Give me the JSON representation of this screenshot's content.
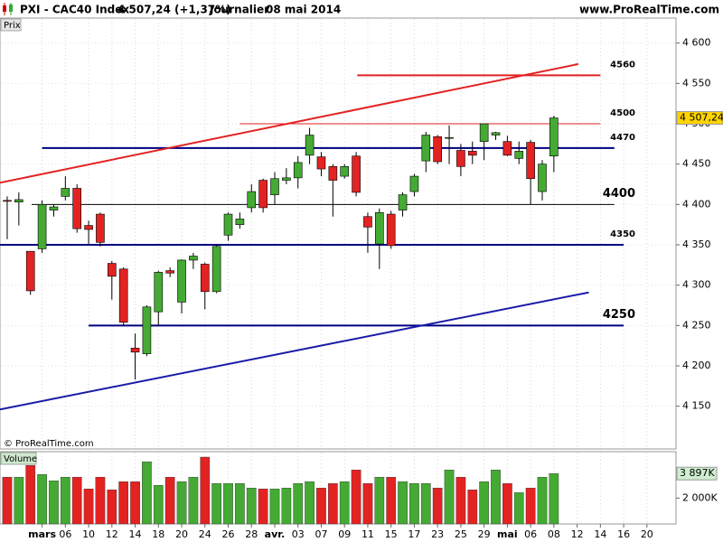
{
  "header": {
    "symbol": "PXI - CAC40 Index",
    "quote": "4 507,24 (+1,37%)",
    "period": "Journalier",
    "date": "08 mai 2014",
    "site": "www.ProRealTime.com"
  },
  "chart_data": [
    {
      "type": "candlestick",
      "y_label": "Prix",
      "watermark": "© ProRealTime.com",
      "categories": [
        null,
        null,
        null,
        "mars",
        null,
        "06",
        null,
        "10",
        null,
        "12",
        null,
        "14",
        null,
        "18",
        null,
        "20",
        null,
        "24",
        null,
        "26",
        null,
        "28",
        null,
        "avr.",
        null,
        "03",
        null,
        "07",
        null,
        "09",
        null,
        "11",
        null,
        "15",
        null,
        "17",
        null,
        "23",
        null,
        "25",
        null,
        "29",
        null,
        "mai",
        null,
        "06",
        null,
        "08",
        null,
        "12",
        null,
        "14",
        null,
        "16",
        null,
        "20",
        null
      ],
      "open": [
        4405,
        4403,
        4342,
        4345,
        4393,
        4410,
        4420,
        4374,
        4388,
        4327,
        4320,
        4222,
        4215,
        4267,
        4318,
        4279,
        4331,
        4326,
        4292,
        4362,
        4375,
        4396,
        4430,
        4412,
        4430,
        4433,
        4461,
        4459,
        4447,
        4435,
        4460,
        4385,
        4351,
        4388,
        4393,
        4416,
        4454,
        4484,
        4482,
        4467,
        4466,
        4478,
        4486,
        4478,
        4457,
        4477,
        4416,
        4460,
        null,
        null,
        null,
        null,
        null,
        null,
        null,
        null,
        null
      ],
      "high": [
        4410,
        4415,
        4342,
        4405,
        4400,
        4435,
        4425,
        4380,
        4390,
        4330,
        4322,
        4240,
        4275,
        4318,
        4322,
        4332,
        4340,
        4328,
        4350,
        4390,
        4390,
        4425,
        4432,
        4440,
        4445,
        4460,
        4495,
        4465,
        4450,
        4450,
        4465,
        4390,
        4395,
        4392,
        4415,
        4438,
        4490,
        4486,
        4498,
        4475,
        4478,
        4500,
        4490,
        4485,
        4478,
        4480,
        4455,
        4510,
        null,
        null,
        null,
        null,
        null,
        null,
        null,
        null,
        null
      ],
      "low": [
        4357,
        4374,
        4288,
        4340,
        4385,
        4405,
        4365,
        4350,
        4348,
        4282,
        4250,
        4183,
        4212,
        4250,
        4310,
        4265,
        4320,
        4270,
        4290,
        4355,
        4370,
        4390,
        4390,
        4400,
        4425,
        4420,
        4450,
        4435,
        4385,
        4432,
        4410,
        4340,
        4320,
        4345,
        4385,
        4410,
        4440,
        4450,
        4450,
        4435,
        4450,
        4455,
        4480,
        4460,
        4450,
        4400,
        4405,
        4440,
        null,
        null,
        null,
        null,
        null,
        null,
        null,
        null,
        null
      ],
      "close": [
        4404,
        4406,
        4293,
        4400,
        4397,
        4420,
        4370,
        4369,
        4353,
        4311,
        4254,
        4217,
        4273,
        4316,
        4315,
        4331,
        4336,
        4292,
        4348,
        4388,
        4382,
        4416,
        4396,
        4432,
        4433,
        4452,
        4486,
        4444,
        4430,
        4447,
        4415,
        4372,
        4390,
        4349,
        4412,
        4435,
        4486,
        4453,
        4483,
        4447,
        4461,
        4500,
        4489,
        4461,
        4466,
        4432,
        4450,
        4507.24,
        null,
        null,
        null,
        null,
        null,
        null,
        null,
        null,
        null
      ],
      "value_labels": [
        null,
        null,
        null,
        null,
        null,
        null,
        null,
        null,
        null,
        null,
        null,
        null,
        null,
        null,
        null,
        null,
        null,
        null,
        null,
        null,
        null,
        null,
        null,
        null,
        null,
        null,
        null,
        null,
        null,
        null,
        null,
        null,
        null,
        null,
        null,
        null,
        null,
        null,
        null,
        null,
        null,
        null,
        null,
        null,
        null,
        null,
        null,
        "4 507,24",
        null,
        null,
        null,
        null,
        null,
        null,
        null,
        null,
        null
      ],
      "up_color": "#44aa33",
      "down_color": "#e32222",
      "last_label_color": "#ffd400",
      "xlim": [
        -0.62,
        57.5
      ],
      "ylim": [
        4097,
        4631
      ],
      "yticks": [
        {
          "value": 4150,
          "label": "4 150"
        },
        {
          "value": 4200,
          "label": "4 200"
        },
        {
          "value": 4250,
          "label": "4 250"
        },
        {
          "value": 4300,
          "label": "4 300"
        },
        {
          "value": 4350,
          "label": "4 350"
        },
        {
          "value": 4400,
          "label": "4 400"
        },
        {
          "value": 4450,
          "label": "4 450"
        },
        {
          "value": 4500,
          "label": "4 500"
        },
        {
          "value": 4550,
          "label": "4 550"
        },
        {
          "value": 4600,
          "label": "4 600"
        }
      ],
      "grid": true,
      "levels": [
        {
          "value": 4560,
          "color": "#e32222",
          "x": [
            30.1,
            51.0
          ],
          "width": 2,
          "emphasis": false
        },
        {
          "value": 4500,
          "color": "#e32222",
          "x": [
            20.0,
            51.0
          ],
          "width": 1,
          "emphasis": false
        },
        {
          "value": 4470,
          "color": "#000080",
          "x": [
            3.0,
            52.2
          ],
          "width": 2,
          "emphasis": false
        },
        {
          "value": 4400,
          "color": "#000000",
          "x": [
            2.1,
            52.2
          ],
          "width": 1,
          "emphasis": true
        },
        {
          "value": 4350,
          "color": "#000080",
          "x": [
            -0.62,
            53.0
          ],
          "width": 2,
          "emphasis": false
        },
        {
          "value": 4250,
          "color": "#000080",
          "x": [
            7.0,
            53.0
          ],
          "width": 2,
          "emphasis": true
        }
      ],
      "trendlines": [
        {
          "color": "#e32222",
          "x": [
            -0.62,
            49.1
          ],
          "y": [
            4427,
            4574
          ]
        },
        {
          "color": "#1a1aa8",
          "x": [
            -0.62,
            50.0
          ],
          "y": [
            4146,
            4291
          ]
        }
      ]
    },
    {
      "type": "bar",
      "y_label": "Volume",
      "values": [
        3620,
        3620,
        4530,
        3830,
        3340,
        3620,
        3620,
        2710,
        3620,
        2640,
        3270,
        3270,
        4810,
        2990,
        3620,
        3270,
        3620,
        5170,
        3130,
        3130,
        3130,
        2780,
        2710,
        2710,
        2780,
        3130,
        3270,
        2780,
        3130,
        3270,
        4180,
        3130,
        3620,
        3620,
        3270,
        3130,
        3130,
        2780,
        4180,
        3620,
        2640,
        3270,
        4180,
        3130,
        2420,
        2780,
        3620,
        3897,
        null,
        null,
        null,
        null,
        null,
        null,
        null,
        null,
        null
      ],
      "value_labels": [
        null,
        null,
        null,
        null,
        null,
        null,
        null,
        null,
        null,
        null,
        null,
        null,
        null,
        null,
        null,
        null,
        null,
        null,
        null,
        null,
        null,
        null,
        null,
        null,
        null,
        null,
        null,
        null,
        null,
        null,
        null,
        null,
        null,
        null,
        null,
        null,
        null,
        null,
        null,
        null,
        null,
        null,
        null,
        null,
        null,
        null,
        null,
        "3 897K",
        null,
        null,
        null,
        null,
        null,
        null,
        null,
        null,
        null
      ],
      "last_label_color": "#cfeecf",
      "ylim": [
        0,
        5590
      ],
      "yticks": [
        {
          "value": 2000,
          "label": "2 000K"
        }
      ]
    }
  ]
}
